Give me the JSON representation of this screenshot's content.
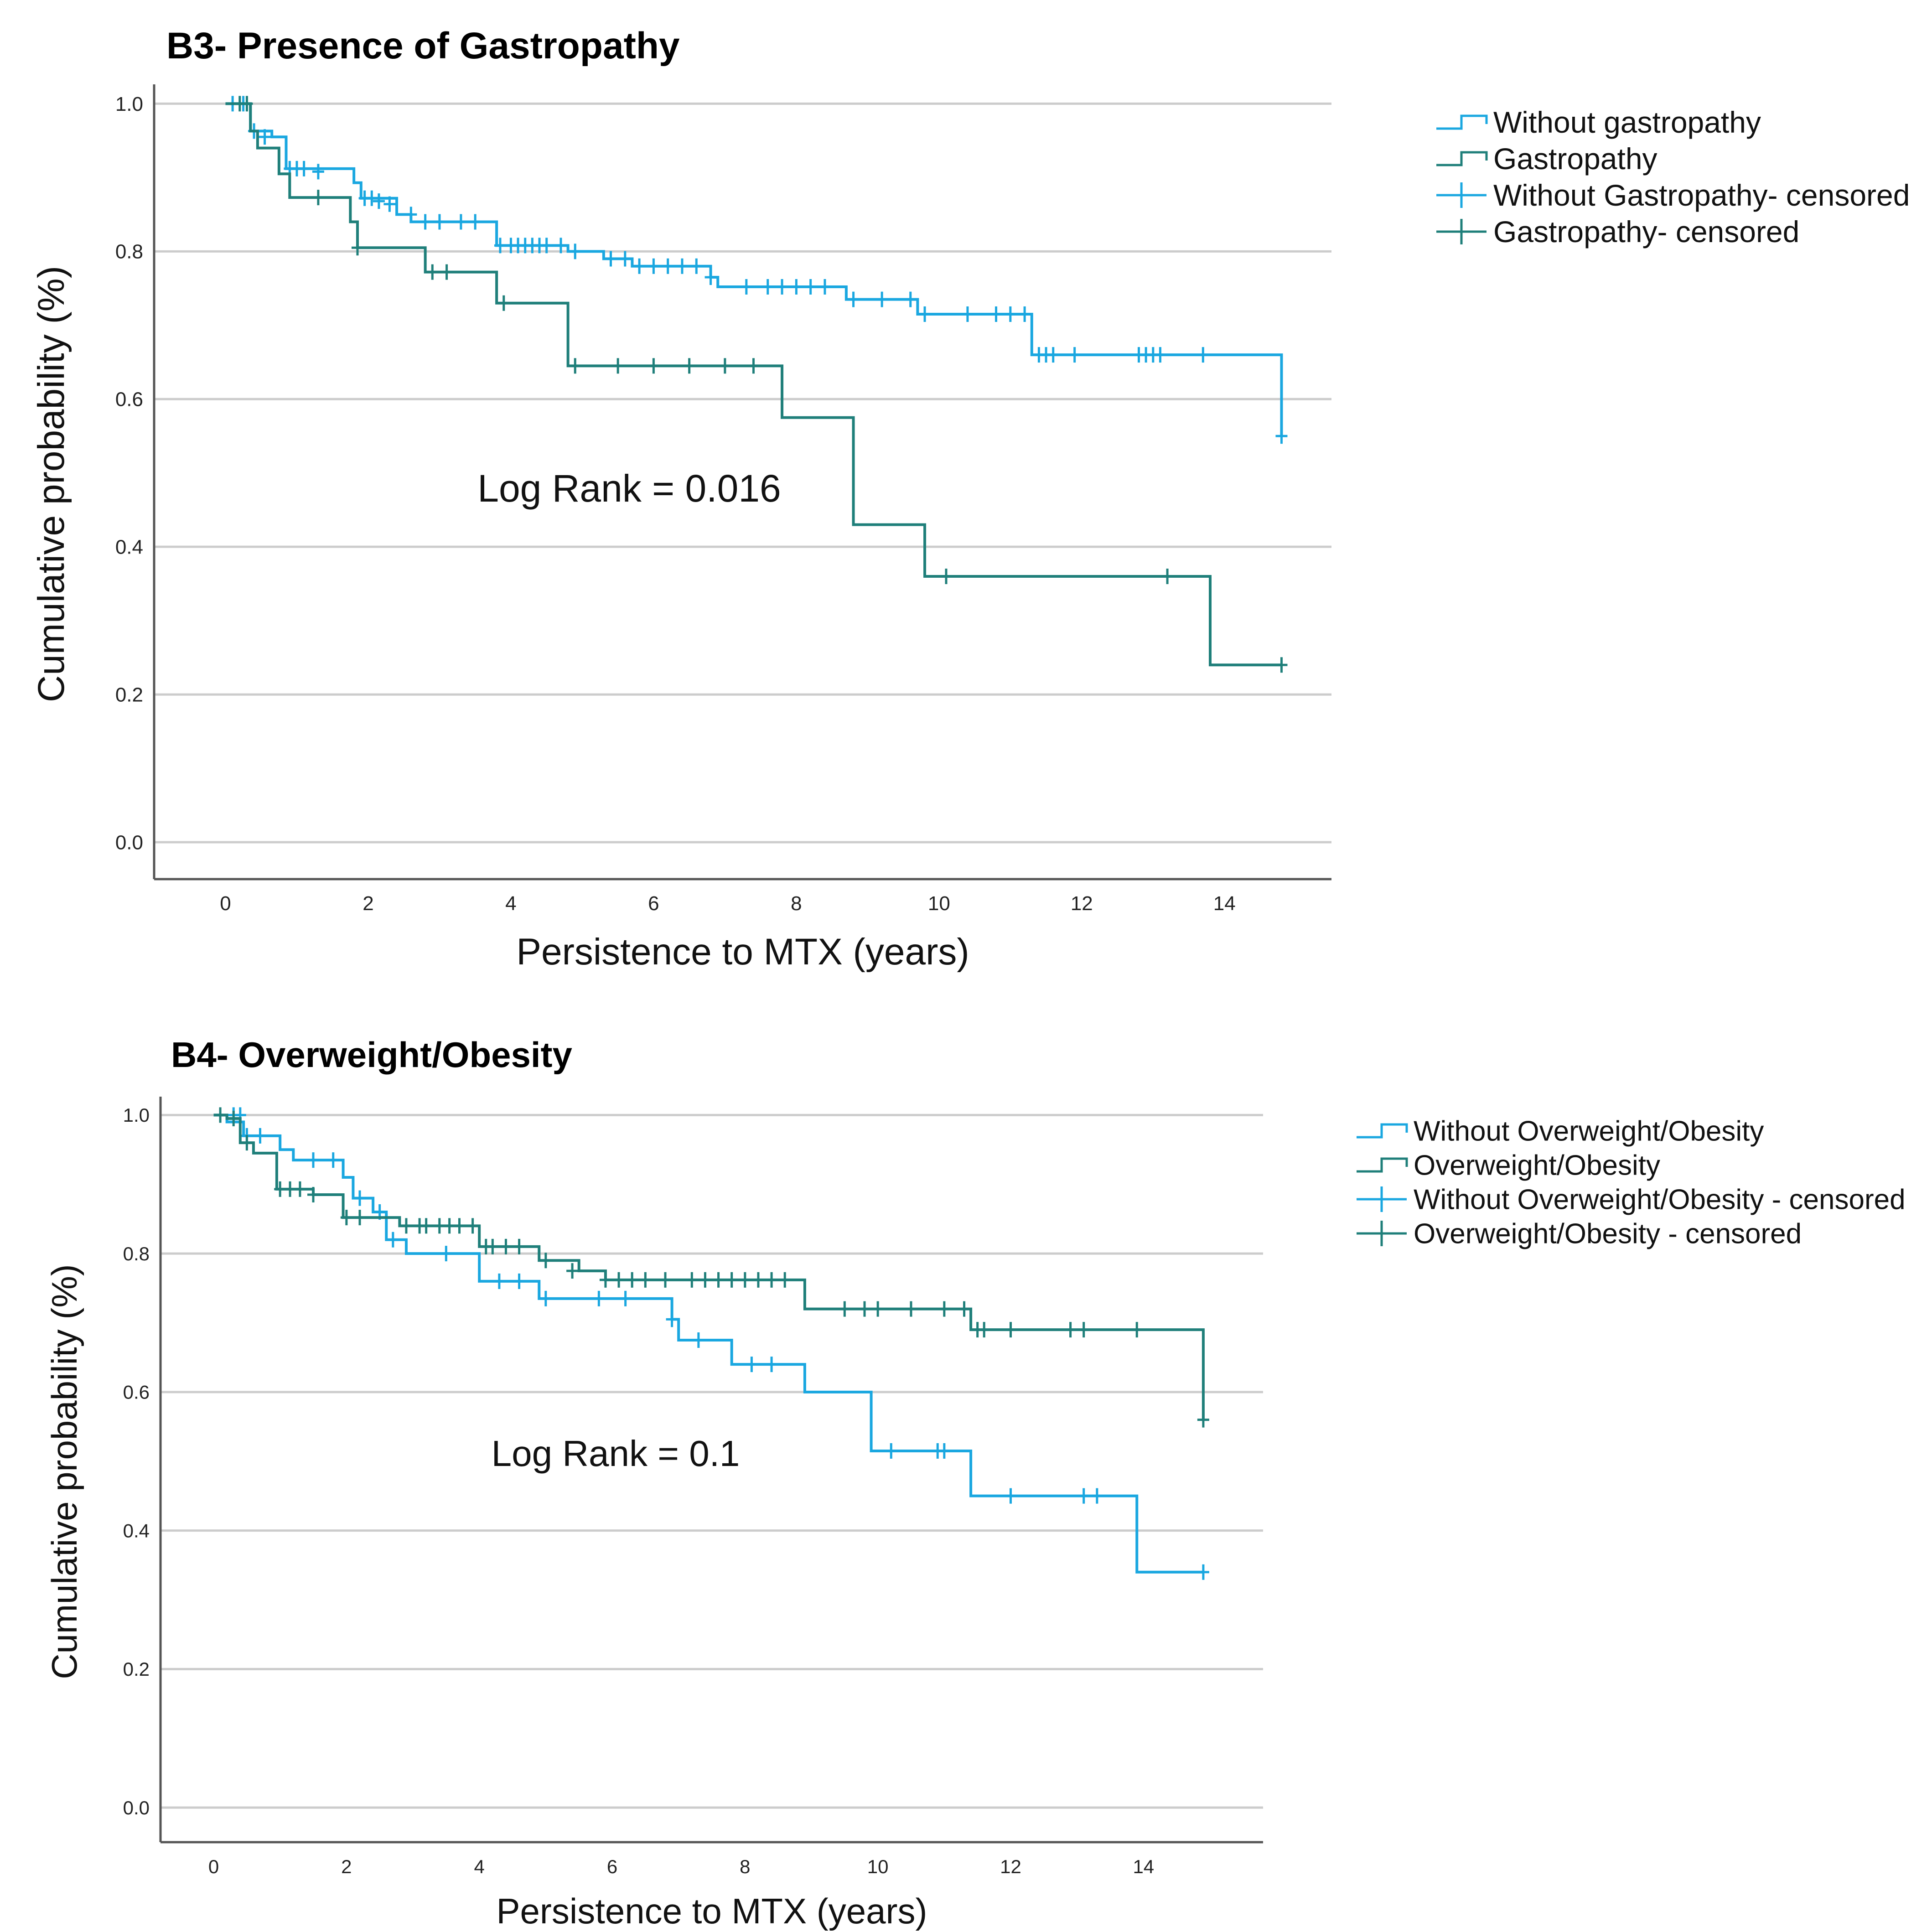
{
  "chart_data": [
    {
      "type": "line",
      "subtype": "kaplan-meier",
      "title": "B3- Presence of Gastropathy",
      "xlabel": "Persistence to MTX (years)",
      "ylabel": "Cumulative probability (%)",
      "xlim": [
        -1,
        15.5
      ],
      "ylim": [
        -0.05,
        1.02
      ],
      "xticks": [
        0,
        2,
        4,
        6,
        8,
        10,
        12,
        14
      ],
      "xtick_labels": [
        "0",
        "2",
        "4",
        "6",
        "8",
        "10",
        "12",
        "14"
      ],
      "yticks": [
        0.0,
        0.2,
        0.4,
        0.6,
        0.8,
        1.0
      ],
      "ytick_labels": [
        "0.0",
        "0.2",
        "0.4",
        "0.6",
        "0.8",
        "1.0"
      ],
      "grid": "horizontal",
      "annotation": "Log Rank = 0.016",
      "legend": [
        "Without gastropathy",
        "Gastropathy",
        "Without Gastropathy- censored",
        "Gastropathy- censored"
      ],
      "series": [
        {
          "name": "Without gastropathy",
          "color": "#1aa7e0",
          "steps": [
            [
              0,
              1.0
            ],
            [
              0.35,
              0.963
            ],
            [
              0.65,
              0.955
            ],
            [
              0.85,
              0.912
            ],
            [
              1.8,
              0.893
            ],
            [
              1.9,
              0.872
            ],
            [
              2.4,
              0.85
            ],
            [
              2.6,
              0.84
            ],
            [
              3.8,
              0.808
            ],
            [
              4.8,
              0.8
            ],
            [
              5.3,
              0.79
            ],
            [
              5.7,
              0.78
            ],
            [
              6.8,
              0.765
            ],
            [
              6.9,
              0.752
            ],
            [
              8.7,
              0.735
            ],
            [
              9.7,
              0.715
            ],
            [
              11.3,
              0.66
            ],
            [
              14.8,
              0.55
            ]
          ],
          "end": 14.8,
          "censored": [
            [
              0.1,
              1.0
            ],
            [
              0.25,
              1.0
            ],
            [
              0.4,
              0.963
            ],
            [
              0.55,
              0.955
            ],
            [
              0.9,
              0.912
            ],
            [
              1.0,
              0.912
            ],
            [
              1.1,
              0.912
            ],
            [
              1.3,
              0.908
            ],
            [
              1.95,
              0.872
            ],
            [
              2.05,
              0.872
            ],
            [
              2.15,
              0.868
            ],
            [
              2.3,
              0.864
            ],
            [
              2.6,
              0.85
            ],
            [
              2.8,
              0.84
            ],
            [
              3.0,
              0.84
            ],
            [
              3.3,
              0.84
            ],
            [
              3.5,
              0.84
            ],
            [
              3.85,
              0.808
            ],
            [
              4.0,
              0.808
            ],
            [
              4.1,
              0.808
            ],
            [
              4.2,
              0.808
            ],
            [
              4.3,
              0.808
            ],
            [
              4.4,
              0.808
            ],
            [
              4.5,
              0.808
            ],
            [
              4.7,
              0.808
            ],
            [
              4.9,
              0.8
            ],
            [
              5.4,
              0.79
            ],
            [
              5.6,
              0.79
            ],
            [
              5.8,
              0.78
            ],
            [
              6.0,
              0.78
            ],
            [
              6.2,
              0.78
            ],
            [
              6.4,
              0.78
            ],
            [
              6.6,
              0.78
            ],
            [
              6.8,
              0.765
            ],
            [
              7.3,
              0.752
            ],
            [
              7.6,
              0.752
            ],
            [
              7.8,
              0.752
            ],
            [
              8.0,
              0.752
            ],
            [
              8.2,
              0.752
            ],
            [
              8.4,
              0.752
            ],
            [
              8.8,
              0.735
            ],
            [
              9.2,
              0.735
            ],
            [
              9.6,
              0.735
            ],
            [
              9.8,
              0.715
            ],
            [
              10.4,
              0.715
            ],
            [
              10.8,
              0.715
            ],
            [
              11.0,
              0.715
            ],
            [
              11.2,
              0.715
            ],
            [
              11.4,
              0.66
            ],
            [
              11.5,
              0.66
            ],
            [
              11.6,
              0.66
            ],
            [
              11.9,
              0.66
            ],
            [
              12.8,
              0.66
            ],
            [
              12.9,
              0.66
            ],
            [
              13.0,
              0.66
            ],
            [
              13.1,
              0.66
            ],
            [
              13.7,
              0.66
            ],
            [
              14.8,
              0.55
            ]
          ]
        },
        {
          "name": "Gastropathy",
          "color": "#1f7f7a",
          "steps": [
            [
              0,
              1.0
            ],
            [
              0.35,
              0.963
            ],
            [
              0.45,
              0.94
            ],
            [
              0.75,
              0.905
            ],
            [
              0.9,
              0.873
            ],
            [
              1.75,
              0.84
            ],
            [
              1.85,
              0.805
            ],
            [
              2.8,
              0.772
            ],
            [
              3.8,
              0.73
            ],
            [
              4.8,
              0.645
            ],
            [
              7.8,
              0.575
            ],
            [
              8.8,
              0.43
            ],
            [
              9.8,
              0.36
            ],
            [
              13.8,
              0.24
            ]
          ],
          "end": 14.8,
          "censored": [
            [
              0.2,
              1.0
            ],
            [
              0.3,
              1.0
            ],
            [
              1.3,
              0.873
            ],
            [
              1.85,
              0.805
            ],
            [
              2.9,
              0.772
            ],
            [
              3.1,
              0.772
            ],
            [
              3.9,
              0.73
            ],
            [
              4.9,
              0.645
            ],
            [
              5.5,
              0.645
            ],
            [
              6.0,
              0.645
            ],
            [
              6.5,
              0.645
            ],
            [
              7.0,
              0.645
            ],
            [
              7.4,
              0.645
            ],
            [
              10.1,
              0.36
            ],
            [
              13.2,
              0.36
            ],
            [
              14.8,
              0.24
            ]
          ]
        }
      ]
    },
    {
      "type": "line",
      "subtype": "kaplan-meier",
      "title": "B4- Overweight/Obesity",
      "xlabel": "Persistence to MTX (years)",
      "ylabel": "Cumulative probability (%)",
      "xlim": [
        -0.8,
        15.8
      ],
      "ylim": [
        -0.05,
        1.02
      ],
      "xticks": [
        0,
        2,
        4,
        6,
        8,
        10,
        12,
        14
      ],
      "xtick_labels": [
        "0",
        "2",
        "4",
        "6",
        "8",
        "10",
        "12",
        "14"
      ],
      "yticks": [
        0.0,
        0.2,
        0.4,
        0.6,
        0.8,
        1.0
      ],
      "ytick_labels": [
        "0.0",
        "0.2",
        "0.4",
        "0.6",
        "0.8",
        "1.0"
      ],
      "grid": "horizontal",
      "annotation": "Log Rank = 0.1",
      "legend": [
        "Without Overweight/Obesity",
        "Overweight/Obesity",
        "Without Overweight/Obesity - censored",
        "Overweight/Obesity - censored"
      ],
      "series": [
        {
          "name": "Without Overweight/Obesity",
          "color": "#1aa7e0",
          "steps": [
            [
              0,
              1.0
            ],
            [
              0.2,
              0.99
            ],
            [
              0.45,
              0.97
            ],
            [
              1.0,
              0.95
            ],
            [
              1.2,
              0.935
            ],
            [
              1.95,
              0.91
            ],
            [
              2.1,
              0.88
            ],
            [
              2.4,
              0.86
            ],
            [
              2.6,
              0.82
            ],
            [
              2.9,
              0.8
            ],
            [
              4.0,
              0.76
            ],
            [
              4.9,
              0.735
            ],
            [
              6.9,
              0.705
            ],
            [
              7.0,
              0.675
            ],
            [
              7.8,
              0.64
            ],
            [
              8.9,
              0.6
            ],
            [
              9.9,
              0.515
            ],
            [
              11.4,
              0.45
            ],
            [
              13.9,
              0.34
            ]
          ],
          "end": 14.9,
          "censored": [
            [
              0.3,
              1.0
            ],
            [
              0.4,
              1.0
            ],
            [
              0.5,
              0.97
            ],
            [
              0.7,
              0.97
            ],
            [
              1.5,
              0.935
            ],
            [
              1.8,
              0.935
            ],
            [
              2.2,
              0.88
            ],
            [
              2.5,
              0.86
            ],
            [
              2.7,
              0.82
            ],
            [
              3.5,
              0.8
            ],
            [
              4.3,
              0.76
            ],
            [
              4.6,
              0.76
            ],
            [
              5.0,
              0.735
            ],
            [
              5.8,
              0.735
            ],
            [
              6.2,
              0.735
            ],
            [
              6.9,
              0.705
            ],
            [
              7.3,
              0.675
            ],
            [
              8.1,
              0.64
            ],
            [
              8.4,
              0.64
            ],
            [
              10.2,
              0.515
            ],
            [
              10.9,
              0.515
            ],
            [
              11.0,
              0.515
            ],
            [
              12.0,
              0.45
            ],
            [
              13.1,
              0.45
            ],
            [
              13.3,
              0.45
            ],
            [
              14.9,
              0.34
            ]
          ]
        },
        {
          "name": "Overweight/Obesity",
          "color": "#1f7f7a",
          "steps": [
            [
              0,
              1.0
            ],
            [
              0.2,
              0.995
            ],
            [
              0.4,
              0.96
            ],
            [
              0.6,
              0.945
            ],
            [
              0.95,
              0.893
            ],
            [
              1.5,
              0.885
            ],
            [
              1.95,
              0.852
            ],
            [
              2.8,
              0.84
            ],
            [
              4.0,
              0.81
            ],
            [
              4.9,
              0.79
            ],
            [
              5.5,
              0.775
            ],
            [
              5.9,
              0.762
            ],
            [
              8.9,
              0.72
            ],
            [
              11.4,
              0.69
            ],
            [
              14.9,
              0.56
            ]
          ],
          "end": 14.9,
          "censored": [
            [
              0.1,
              1.0
            ],
            [
              0.3,
              0.995
            ],
            [
              0.5,
              0.96
            ],
            [
              1.0,
              0.893
            ],
            [
              1.15,
              0.893
            ],
            [
              1.3,
              0.893
            ],
            [
              1.5,
              0.885
            ],
            [
              2.0,
              0.852
            ],
            [
              2.2,
              0.852
            ],
            [
              2.9,
              0.84
            ],
            [
              3.1,
              0.84
            ],
            [
              3.2,
              0.84
            ],
            [
              3.4,
              0.84
            ],
            [
              3.55,
              0.84
            ],
            [
              3.7,
              0.84
            ],
            [
              3.9,
              0.84
            ],
            [
              4.1,
              0.81
            ],
            [
              4.2,
              0.81
            ],
            [
              4.4,
              0.81
            ],
            [
              4.6,
              0.81
            ],
            [
              5.0,
              0.79
            ],
            [
              5.4,
              0.775
            ],
            [
              5.9,
              0.762
            ],
            [
              6.1,
              0.762
            ],
            [
              6.3,
              0.762
            ],
            [
              6.5,
              0.762
            ],
            [
              6.8,
              0.762
            ],
            [
              7.2,
              0.762
            ],
            [
              7.4,
              0.762
            ],
            [
              7.6,
              0.762
            ],
            [
              7.8,
              0.762
            ],
            [
              8.0,
              0.762
            ],
            [
              8.2,
              0.762
            ],
            [
              8.4,
              0.762
            ],
            [
              8.6,
              0.762
            ],
            [
              9.5,
              0.72
            ],
            [
              9.8,
              0.72
            ],
            [
              10.0,
              0.72
            ],
            [
              10.5,
              0.72
            ],
            [
              11.0,
              0.72
            ],
            [
              11.3,
              0.72
            ],
            [
              11.5,
              0.69
            ],
            [
              11.6,
              0.69
            ],
            [
              12.0,
              0.69
            ],
            [
              12.9,
              0.69
            ],
            [
              13.1,
              0.69
            ],
            [
              13.9,
              0.69
            ],
            [
              14.9,
              0.56
            ]
          ]
        }
      ]
    }
  ]
}
